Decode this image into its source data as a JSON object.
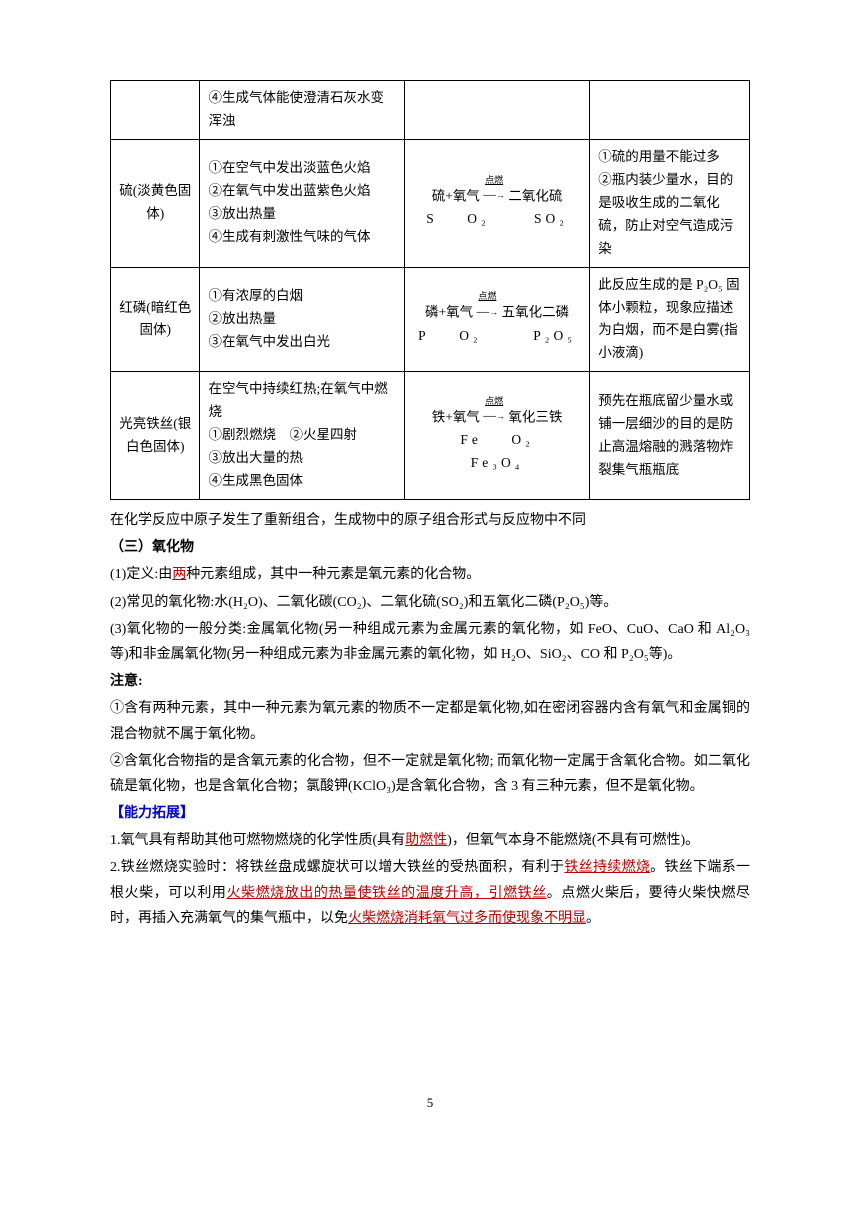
{
  "colors": {
    "text": "#000000",
    "border": "#000000",
    "red_underline": "#c00000",
    "blue": "#0000cc",
    "background": "#ffffff"
  },
  "typography": {
    "body_fontsize": 14,
    "table_fontsize": 13.5,
    "sub_fontsize": 10,
    "line_height": 1.8
  },
  "table": {
    "column_widths_pct": [
      14,
      32,
      29,
      25
    ],
    "rows": [
      {
        "c1": "",
        "c2": "④生成气体能使澄清石灰水变浑浊",
        "c3_word": "",
        "c3_sym": "",
        "c4": ""
      },
      {
        "c1": "硫(淡黄色固体)",
        "c2": "①在空气中发出淡蓝色火焰\n②在氧气中发出蓝紫色火焰\n③放出热量\n④生成有刺激性气味的气体",
        "c3_word_a": "硫+氧气",
        "c3_cond": "点燃",
        "c3_word_b": "二氧化硫",
        "c3_sym_a": "S",
        "c3_sym_b": "O₂",
        "c3_sym_c": "SO₂",
        "c4": "①硫的用量不能过多\n②瓶内装少量水，目的是吸收生成的二氧化硫，防止对空气造成污染"
      },
      {
        "c1": "红磷(暗红色固体)",
        "c2": "①有浓厚的白烟\n②放出热量\n③在氧气中发出白光",
        "c3_word_a": "磷+氧气",
        "c3_cond": "点燃",
        "c3_word_b": "五氧化二磷",
        "c3_sym_a": "P",
        "c3_sym_b": "O₂",
        "c3_sym_c": "P₂O₅",
        "c4": "此反应生成的是 P₂O₅ 固体小颗粒，现象应描述为白烟，而不是白雾(指小液滴)"
      },
      {
        "c1": "光亮铁丝(银白色固体)",
        "c2": "在空气中持续红热;在氧气中燃烧\n①剧烈燃烧　②火星四射\n③放出大量的热\n④生成黑色固体",
        "c3_word_a": "铁+氧气",
        "c3_cond": "点燃",
        "c3_word_b": "氧化三铁",
        "c3_sym_a": "Fe",
        "c3_sym_b": "O₂",
        "c3_sym_c": "Fe₃O₄",
        "c4": "预先在瓶底留少量水或铺一层细沙的目的是防止高温熔融的溅落物炸裂集气瓶瓶底"
      }
    ]
  },
  "prose": {
    "p1": "在化学反应中原子发生了重新组合，生成物中的原子组合形式与反应物中不同",
    "h3": "（三）氧化物",
    "d1a": "(1)定义:由",
    "d1b": "两",
    "d1c": "种元素组成，其中一种元素是氧元素的化合物。",
    "d2": "(2)常见的氧化物:水(H₂O)、二氧化碳(CO₂)、二氧化硫(SO₂)和五氧化二磷(P₂O₅)等。",
    "d3": "(3)氧化物的一般分类:金属氧化物(另一种组成元素为金属元素的氧化物，如 FeO、CuO、CaO 和 Al₂O₃等)和非金属氧化物(另一种组成元素为非金属元素的氧化物，如 H₂O、SiO₂、CO 和 P₂O₅等)。",
    "note_h": "注意:",
    "n1": "①含有两种元素，其中一种元素为氧元素的物质不一定都是氧化物,如在密闭容器内含有氧气和金属铜的混合物就不属于氧化物。",
    "n2": "②含氧化合物指的是含氧元素的化合物，但不一定就是氧化物; 而氧化物一定属于含氧化合物。如二氧化硫是氧化物，也是含氧化合物；氯酸钾(KClO₃)是含氧化合物，含 3 有三种元素，但不是氧化物。",
    "ext_h": "【能力拓展】",
    "e1a": "1.氧气具有帮助其他可燃物燃烧的化学性质(具有",
    "e1b": "助燃性",
    "e1c": ")，但氧气本身不能燃烧(不具有可燃性)。",
    "e2a": "2.铁丝燃烧实验时：将铁丝盘成螺旋状可以增大铁丝的受热面积，有利于",
    "e2b": "铁丝持续燃烧",
    "e2c": "。铁丝下端系一根火柴，可以利用",
    "e2d": "火柴燃烧放出的热量使铁丝的温度升高，引燃铁丝",
    "e2e": "。点燃火柴后，要待火柴快燃尽时，再插入充满氧气的集气瓶中，以免",
    "e2f": "火柴燃烧消耗氧气过多而使现象不明显",
    "e2g": "。"
  },
  "page_number": "5"
}
